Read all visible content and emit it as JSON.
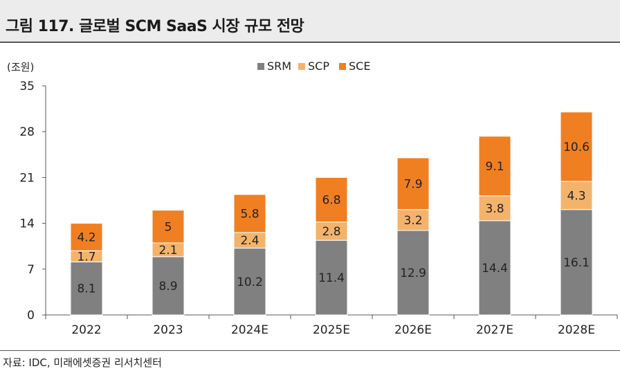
{
  "header": {
    "title": "그림 117. 글로벌 SCM SaaS 시장 규모 전망"
  },
  "footer": {
    "source": "자료: IDC, 미래에셋증권 리서치센터"
  },
  "colors": {
    "SRM": "#808080",
    "SCP": "#F4B36B",
    "SCE": "#F07F21"
  },
  "chart_data": {
    "type": "bar",
    "stacked": true,
    "unit_label": "(조원)",
    "categories": [
      "2022",
      "2023",
      "2024E",
      "2025E",
      "2026E",
      "2027E",
      "2028E"
    ],
    "series": [
      {
        "name": "SRM",
        "values": [
          8.1,
          8.9,
          10.2,
          11.4,
          12.9,
          14.4,
          16.1
        ]
      },
      {
        "name": "SCP",
        "values": [
          1.7,
          2.1,
          2.4,
          2.8,
          3.2,
          3.8,
          4.3
        ]
      },
      {
        "name": "SCE",
        "values": [
          4.2,
          5,
          5.8,
          6.8,
          7.9,
          9.1,
          10.6
        ]
      }
    ],
    "ylim": [
      0,
      35
    ],
    "yticks": [
      0,
      7,
      14,
      21,
      28,
      35
    ],
    "legend": "top-center",
    "grid": false
  }
}
